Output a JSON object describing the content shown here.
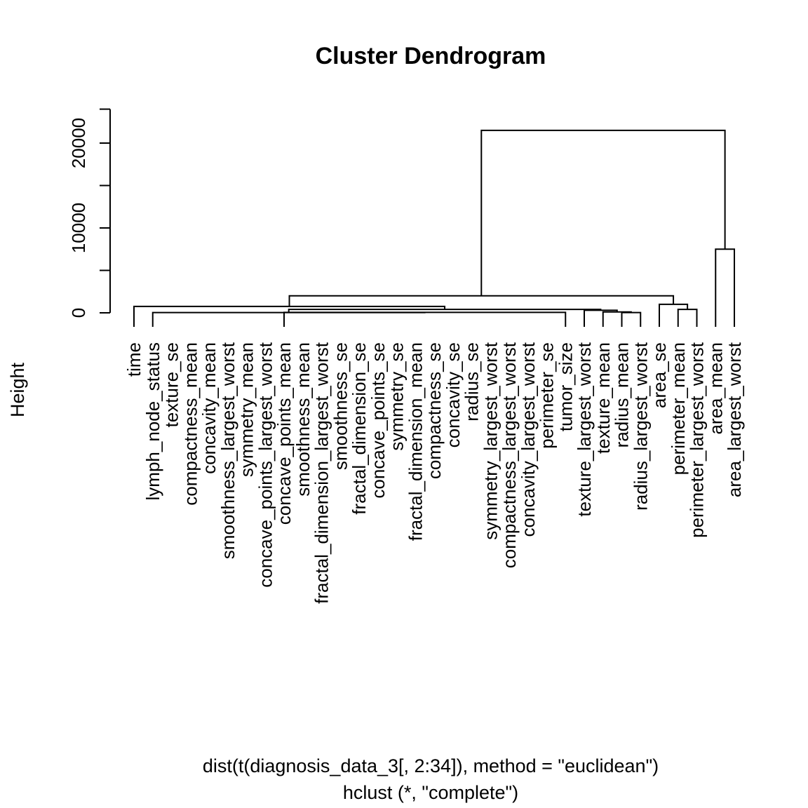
{
  "chart_data": {
    "type": "dendrogram",
    "title": "Cluster Dendrogram",
    "ylabel": "Height",
    "xlabel": "dist(t(diagnosis_data_3[, 2:34]), method = \"euclidean\")",
    "sublabel": "hclust (*, \"complete\")",
    "ylim": [
      0,
      24000
    ],
    "yticks": [
      0,
      5000,
      10000,
      15000,
      20000,
      24000
    ],
    "ytick_labels": [
      {
        "value": 0,
        "text": "0"
      },
      {
        "value": 10000,
        "text": "10000"
      },
      {
        "value": 20000,
        "text": "20000"
      }
    ],
    "leaves": [
      "time",
      "lymph_node_status",
      "texture_se",
      "compactness_mean",
      "concavity_mean",
      "smoothness_largest_worst",
      "symmetry_mean",
      "concave_points_largest_worst",
      "concave_points_mean",
      "smoothness_mean",
      "fractal_dimension_largest_worst",
      "smoothness_se",
      "fractal_dimension_se",
      "concave_points_se",
      "symmetry_se",
      "fractal_dimension_mean",
      "compactness_se",
      "concavity_se",
      "radius_se",
      "symmetry_largest_worst",
      "compactness_largest_worst",
      "concavity_largest_worst",
      "perimeter_se",
      "tumor_size",
      "texture_largest_worst",
      "texture_mean",
      "radius_mean",
      "radius_largest_worst",
      "area_se",
      "perimeter_mean",
      "perimeter_largest_worst",
      "area_mean",
      "area_largest_worst"
    ],
    "leaf_heights": [
      100,
      10,
      10,
      10,
      10,
      10,
      10,
      10,
      10,
      10,
      10,
      10,
      10,
      10,
      10,
      10,
      10,
      10,
      10,
      10,
      10,
      10,
      10,
      10,
      10,
      10,
      10,
      10,
      100,
      100,
      100,
      100,
      100
    ],
    "merges": [
      {
        "id": "g1",
        "left": {
          "leaf": 26
        },
        "right": {
          "leaf": 27
        },
        "height": 30
      },
      {
        "id": "g2",
        "left": {
          "leaf": 25
        },
        "right": {
          "node": "g1"
        },
        "height": 100
      },
      {
        "id": "g3",
        "left": {
          "leaf": 24
        },
        "right": {
          "node": "g2"
        },
        "height": 300
      },
      {
        "id": "g4",
        "left": {
          "leaf": 8
        },
        "right": {
          "leaf": 23
        },
        "height": 50
      },
      {
        "id": "g5",
        "left": {
          "leaf": 1
        },
        "right": {
          "node": "g4"
        },
        "height": 30
      },
      {
        "id": "g6",
        "left": {
          "node": "g5"
        },
        "right": {
          "node": "g3"
        },
        "height": 400
      },
      {
        "id": "g7",
        "left": {
          "leaf": 0
        },
        "right": {
          "node": "g6"
        },
        "height": 750
      },
      {
        "id": "g8",
        "left": {
          "leaf": 29
        },
        "right": {
          "leaf": 30
        },
        "height": 400
      },
      {
        "id": "g9",
        "left": {
          "leaf": 28
        },
        "right": {
          "node": "g8"
        },
        "height": 1000
      },
      {
        "id": "g10",
        "left": {
          "node": "g7"
        },
        "right": {
          "node": "g9"
        },
        "height": 2000
      },
      {
        "id": "g11",
        "left": {
          "leaf": 31
        },
        "right": {
          "leaf": 32
        },
        "height": 7500
      },
      {
        "id": "g12",
        "left": {
          "node": "g10"
        },
        "right": {
          "node": "g11"
        },
        "height": 21500
      }
    ]
  }
}
